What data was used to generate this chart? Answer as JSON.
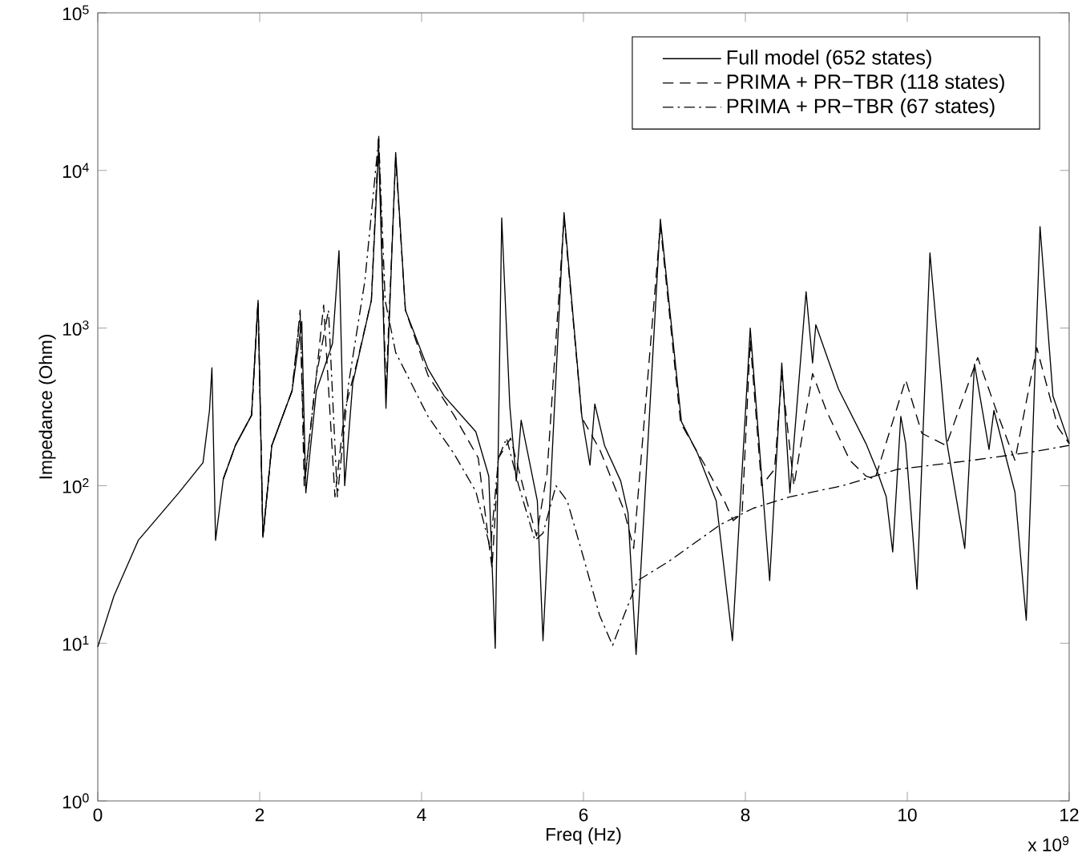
{
  "chart_data": {
    "type": "line",
    "xlabel": "Freq (Hz)",
    "ylabel": "Impedance (Ohm)",
    "annotations": [
      "x 10$^{9}$"
    ],
    "xlim": [
      0,
      12
    ],
    "xticks": [
      0,
      2,
      4,
      6,
      8,
      10,
      12
    ],
    "ylim": [
      1,
      100000
    ],
    "yticks": [
      {
        "value": 1,
        "label": "10$^{0}$"
      },
      {
        "value": 10,
        "label": "10$^{1}$"
      },
      {
        "value": 100,
        "label": "10$^{2}$"
      },
      {
        "value": 1000,
        "label": "10$^{3}$"
      },
      {
        "value": 10000,
        "label": "10$^{4}$"
      },
      {
        "value": 100000,
        "label": "10$^{5}$"
      }
    ],
    "log": "y",
    "grid": false,
    "legend": "top right",
    "marker": "none",
    "series": [
      {
        "name": "Full model (652 states)",
        "color": "#000000",
        "line_style": "solid",
        "x": [
          0,
          0.2,
          0.5,
          1.0,
          1.3,
          1.38,
          1.41,
          1.455,
          1.55,
          1.7,
          1.9,
          1.98,
          2.04,
          2.15,
          2.4,
          2.52,
          2.57,
          2.7,
          2.9,
          2.98,
          3.05,
          3.15,
          3.38,
          3.47,
          3.56,
          3.68,
          3.8,
          4.08,
          4.28,
          4.67,
          4.83,
          4.91,
          4.99,
          5.09,
          5.17,
          5.23,
          5.43,
          5.5,
          5.76,
          5.98,
          6.08,
          6.14,
          6.26,
          6.46,
          6.55,
          6.65,
          6.95,
          7.21,
          7.41,
          7.64,
          7.84,
          8.06,
          8.3,
          8.45,
          8.55,
          8.75,
          8.83,
          8.87,
          9.15,
          9.49,
          9.62,
          9.74,
          9.82,
          9.92,
          9.98,
          10.12,
          10.28,
          10.48,
          10.71,
          10.83,
          11.01,
          11.07,
          11.33,
          11.47,
          11.64,
          11.8,
          12.0
        ],
        "values": [
          9.5,
          20,
          45,
          90,
          140,
          300,
          560,
          45,
          110,
          180,
          280,
          1500,
          47,
          180,
          400,
          1100,
          90,
          400,
          800,
          3100,
          100,
          450,
          1500,
          14000,
          310,
          13000,
          1300,
          550,
          370,
          220,
          115,
          9.3,
          5000,
          320,
          107,
          260,
          80,
          10.4,
          5400,
          275,
          135,
          330,
          180,
          107,
          67,
          8.5,
          4900,
          255,
          160,
          80,
          10.4,
          1000,
          25,
          600,
          90,
          1700,
          600,
          1050,
          410,
          185,
          127,
          85,
          38,
          275,
          185,
          22,
          3000,
          200,
          40,
          590,
          170,
          300,
          91,
          14,
          4400,
          370,
          185
        ]
      },
      {
        "name": "PRIMA + PR−TBR (118 states)",
        "color": "#000000",
        "line_style": "dashed",
        "x": [
          1.55,
          1.7,
          1.9,
          1.98,
          2.04,
          2.15,
          2.4,
          2.5,
          2.55,
          2.7,
          2.79,
          2.93,
          3.05,
          3.2,
          3.38,
          3.47,
          3.56,
          3.68,
          3.8,
          4.08,
          4.4,
          4.7,
          4.87,
          4.95,
          5.1,
          5.3,
          5.42,
          5.55,
          5.76,
          5.98,
          6.2,
          6.5,
          6.62,
          6.95,
          7.2,
          7.5,
          7.74,
          7.85,
          7.96,
          8.06,
          8.2,
          8.36,
          8.45,
          8.6,
          8.83,
          9.0,
          9.29,
          9.49,
          9.6,
          9.98,
          10.18,
          10.48,
          10.87,
          11.1,
          11.33,
          11.6,
          11.86,
          12.0
        ],
        "values": [
          110,
          180,
          280,
          1500,
          47,
          180,
          400,
          1300,
          100,
          500,
          1400,
          85,
          300,
          600,
          1500,
          17000,
          400,
          12000,
          1300,
          500,
          280,
          150,
          30,
          150,
          200,
          80,
          48,
          120,
          5000,
          270,
          170,
          70,
          40,
          4500,
          250,
          135,
          80,
          60,
          67,
          830,
          100,
          127,
          500,
          100,
          515,
          300,
          145,
          115,
          110,
          470,
          215,
          180,
          650,
          300,
          145,
          750,
          235,
          185
        ]
      },
      {
        "name": "PRIMA + PR−TBR (67 states)",
        "color": "#000000",
        "line_style": "dashdot",
        "x": [
          1.55,
          1.7,
          1.9,
          1.98,
          2.04,
          2.15,
          2.4,
          2.5,
          2.56,
          2.7,
          2.85,
          2.96,
          3.1,
          3.3,
          3.47,
          3.55,
          3.68,
          4.08,
          4.4,
          4.67,
          4.85,
          4.95,
          5.05,
          5.2,
          5.4,
          5.5,
          5.66,
          5.8,
          6.0,
          6.2,
          6.36,
          6.5,
          6.67,
          7.05,
          7.7,
          8.1,
          8.55,
          9.2,
          9.88,
          10.81,
          11.52,
          12.0
        ],
        "values": [
          110,
          180,
          280,
          1450,
          48,
          180,
          400,
          1200,
          110,
          500,
          1300,
          85,
          450,
          2000,
          16000,
          1500,
          700,
          275,
          160,
          92,
          40,
          150,
          200,
          100,
          45,
          50,
          100,
          80,
          35,
          15,
          9.7,
          15,
          25,
          33,
          57,
          72,
          85,
          100,
          127,
          145,
          163,
          180
        ]
      }
    ]
  }
}
